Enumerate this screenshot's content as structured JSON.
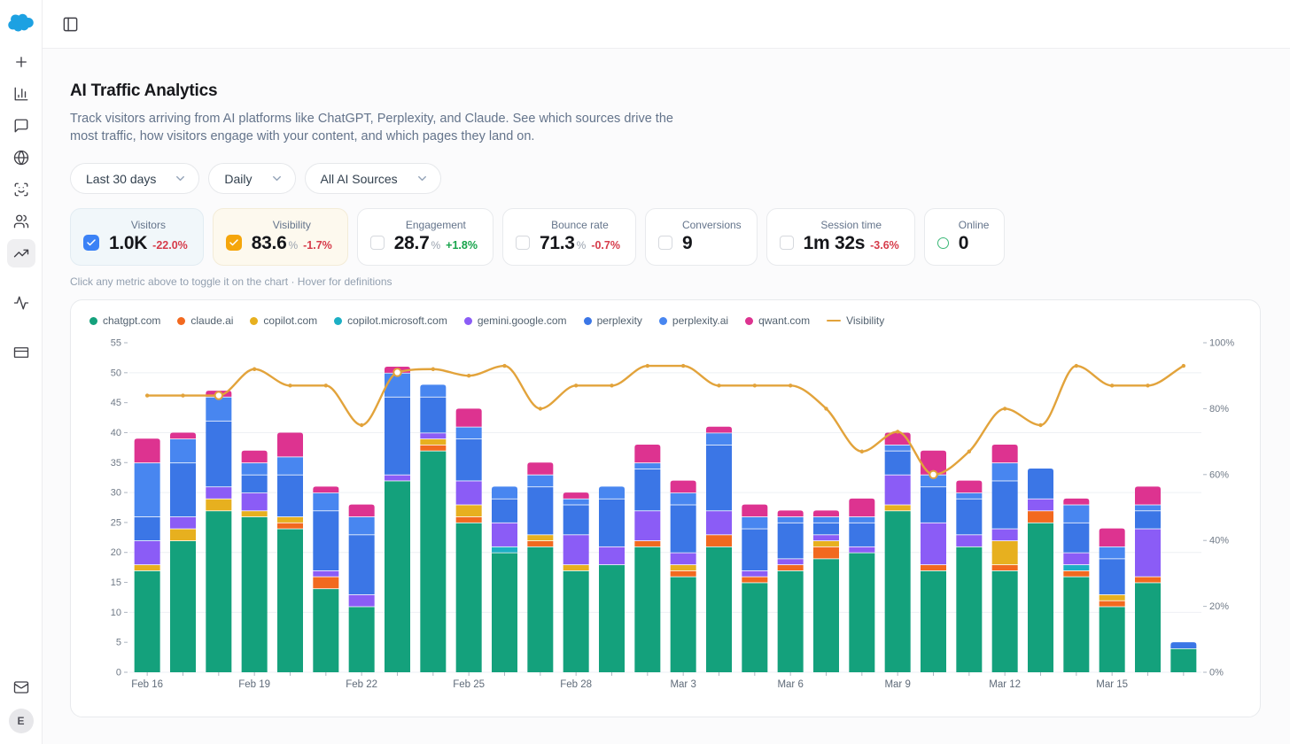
{
  "app": {
    "logo_color": "#1da1e2",
    "avatar_initial": "E"
  },
  "sidebar": {
    "items": [
      {
        "name": "plus"
      },
      {
        "name": "bar-chart"
      },
      {
        "name": "message-square"
      },
      {
        "name": "globe"
      },
      {
        "name": "scan-face"
      },
      {
        "name": "users"
      },
      {
        "name": "trending-up",
        "active": true
      },
      {
        "name": "activity",
        "gap_before": true
      },
      {
        "name": "credit-card",
        "gap_before": true
      }
    ],
    "bottom_items": [
      {
        "name": "mail"
      }
    ]
  },
  "topbar": {
    "toggle_icon": "panel-left"
  },
  "header": {
    "title": "AI Traffic Analytics",
    "description": "Track visitors arriving from AI platforms like ChatGPT, Perplexity, and Claude. See which sources drive the most traffic, how visitors engage with your content, and which pages they land on."
  },
  "filters": [
    {
      "name": "date-range",
      "label": "Last 30 days"
    },
    {
      "name": "granularity",
      "label": "Daily"
    },
    {
      "name": "ai-sources",
      "label": "All AI Sources"
    }
  ],
  "metrics": [
    {
      "label": "Visitors",
      "value": "1.0K",
      "delta": "-22.0%",
      "delta_dir": "down",
      "state": "checked-blue"
    },
    {
      "label": "Visibility",
      "value": "83.6",
      "suffix": "%",
      "delta": "-1.7%",
      "delta_dir": "down",
      "state": "checked-amber"
    },
    {
      "label": "Engagement",
      "value": "28.7",
      "suffix": "%",
      "delta": "+1.8%",
      "delta_dir": "up",
      "state": "unchecked"
    },
    {
      "label": "Bounce rate",
      "value": "71.3",
      "suffix": "%",
      "delta": "-0.7%",
      "delta_dir": "down",
      "state": "unchecked"
    },
    {
      "label": "Conversions",
      "value": "9",
      "state": "unchecked"
    },
    {
      "label": "Session time",
      "value": "1m 32s",
      "delta": "-3.6%",
      "delta_dir": "down",
      "state": "unchecked"
    },
    {
      "label": "Online",
      "value": "0",
      "state": "ring"
    }
  ],
  "hint": "Click any metric above to toggle it on the chart · Hover for definitions",
  "chart_data": {
    "type": "bar",
    "subtype": "stacked-bars-with-line",
    "categories": [
      "Feb 16",
      "Feb 17",
      "Feb 18",
      "Feb 19",
      "Feb 20",
      "Feb 21",
      "Feb 22",
      "Feb 23",
      "Feb 24",
      "Feb 25",
      "Feb 26",
      "Feb 27",
      "Feb 28",
      "Mar 1",
      "Mar 2",
      "Mar 3",
      "Mar 4",
      "Mar 5",
      "Mar 6",
      "Mar 7",
      "Mar 8",
      "Mar 9",
      "Mar 10",
      "Mar 11",
      "Mar 12",
      "Mar 13",
      "Mar 14",
      "Mar 15",
      "Mar 16",
      "Mar 17"
    ],
    "x_label_every": 3,
    "series": [
      {
        "name": "chatgpt.com",
        "color": "#14a17c",
        "values": [
          17,
          22,
          27,
          26,
          24,
          14,
          11,
          32,
          37,
          25,
          20,
          21,
          17,
          18,
          21,
          16,
          21,
          15,
          17,
          19,
          20,
          27,
          17,
          21,
          17,
          25,
          16,
          11,
          15,
          4
        ]
      },
      {
        "name": "claude.ai",
        "color": "#f2691f",
        "values": [
          0,
          0,
          0,
          0,
          1,
          2,
          0,
          0,
          1,
          1,
          0,
          1,
          0,
          0,
          1,
          1,
          2,
          1,
          1,
          2,
          0,
          0,
          1,
          0,
          1,
          2,
          1,
          1,
          1,
          0
        ]
      },
      {
        "name": "copilot.com",
        "color": "#e7b01f",
        "values": [
          1,
          2,
          2,
          1,
          1,
          0,
          0,
          0,
          1,
          2,
          0,
          1,
          1,
          0,
          0,
          1,
          0,
          0,
          0,
          1,
          0,
          1,
          0,
          0,
          4,
          0,
          0,
          1,
          0,
          0
        ]
      },
      {
        "name": "copilot.microsoft.com",
        "color": "#1cafc4",
        "values": [
          0,
          0,
          0,
          0,
          0,
          0,
          0,
          0,
          0,
          0,
          1,
          0,
          0,
          0,
          0,
          0,
          0,
          0,
          0,
          0,
          0,
          0,
          0,
          0,
          0,
          0,
          1,
          0,
          0,
          0
        ]
      },
      {
        "name": "gemini.google.com",
        "color": "#8b5cf6",
        "values": [
          4,
          2,
          2,
          3,
          0,
          1,
          2,
          1,
          1,
          4,
          4,
          0,
          5,
          3,
          5,
          2,
          4,
          1,
          1,
          1,
          1,
          5,
          7,
          2,
          2,
          2,
          2,
          0,
          8,
          0
        ]
      },
      {
        "name": "perplexity",
        "color": "#3b76e6",
        "values": [
          4,
          9,
          11,
          3,
          7,
          10,
          10,
          13,
          6,
          7,
          4,
          8,
          5,
          8,
          7,
          8,
          11,
          7,
          6,
          2,
          4,
          4,
          6,
          6,
          8,
          5,
          5,
          6,
          3,
          1
        ]
      },
      {
        "name": "perplexity.ai",
        "color": "#4886f0",
        "values": [
          9,
          4,
          4,
          2,
          3,
          3,
          3,
          4,
          2,
          2,
          2,
          2,
          1,
          2,
          1,
          2,
          2,
          2,
          1,
          1,
          1,
          1,
          2,
          1,
          3,
          0,
          3,
          2,
          1,
          0
        ]
      },
      {
        "name": "qwant.com",
        "color": "#dd3390",
        "values": [
          4,
          1,
          1,
          2,
          4,
          1,
          2,
          1,
          0,
          3,
          0,
          2,
          1,
          0,
          3,
          2,
          1,
          2,
          1,
          1,
          3,
          2,
          4,
          2,
          3,
          0,
          1,
          3,
          3,
          0
        ]
      }
    ],
    "line_series": {
      "name": "Visibility",
      "color": "#e2a33b",
      "axis": "right",
      "values": [
        84,
        84,
        84,
        92,
        87,
        87,
        75,
        91,
        92,
        90,
        93,
        80,
        87,
        87,
        93,
        93,
        87,
        87,
        87,
        80,
        67,
        73,
        60,
        67,
        80,
        75,
        93,
        87,
        87,
        93
      ],
      "highlight_indices": [
        2,
        7,
        22
      ]
    },
    "left_axis": {
      "min": 0,
      "max": 55,
      "tick_step": 5
    },
    "right_axis": {
      "min": 0,
      "max": 100,
      "tick_step": 20,
      "suffix": "%"
    },
    "grid_values": [
      0,
      10,
      20,
      30,
      40,
      50
    ],
    "grid_color": "#eef0f4",
    "axis_text_color": "#707a87"
  }
}
